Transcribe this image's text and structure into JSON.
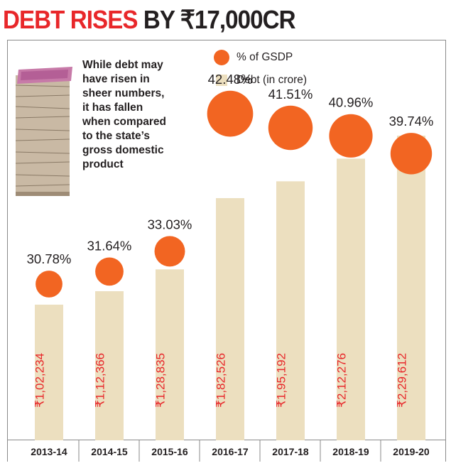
{
  "title": {
    "part1": "DEBT RISES",
    "part2": " BY ₹17,000CR"
  },
  "blurb": "While debt may\nhave risen in\nsheer numbers,\nit has fallen\nwhen compared\nto the state’s\ngross domestic\nproduct",
  "legend": {
    "gsdp": "% of GSDP",
    "debt": "Debt (in crore)"
  },
  "colors": {
    "title_red": "#e8272a",
    "bar": "#ecdfbf",
    "dot": "#f26522",
    "debt_label": "#e8272a"
  },
  "chart_data": {
    "type": "bar",
    "categories": [
      "2013-14",
      "2014-15",
      "2015-16",
      "2016-17",
      "2017-18",
      "2018-19",
      "2019-20"
    ],
    "series": [
      {
        "name": "Debt (in crore)",
        "values": [
          102234,
          112366,
          128835,
          182526,
          195192,
          212276,
          229612
        ],
        "labels": [
          "₹1,02,234",
          "₹1,12,366",
          "₹1,28,835",
          "₹1,82,526",
          "₹1,95,192",
          "₹2,12,276",
          "₹2,29,612"
        ]
      },
      {
        "name": "% of GSDP",
        "values": [
          30.78,
          31.64,
          33.03,
          42.48,
          41.51,
          40.96,
          39.74
        ],
        "labels": [
          "30.78%",
          "31.64%",
          "33.03%",
          "42.48%",
          "41.51%",
          "40.96%",
          "39.74%"
        ]
      }
    ],
    "title": "DEBT RISES BY ₹17,000CR",
    "legend": "top-right",
    "grid": false
  }
}
